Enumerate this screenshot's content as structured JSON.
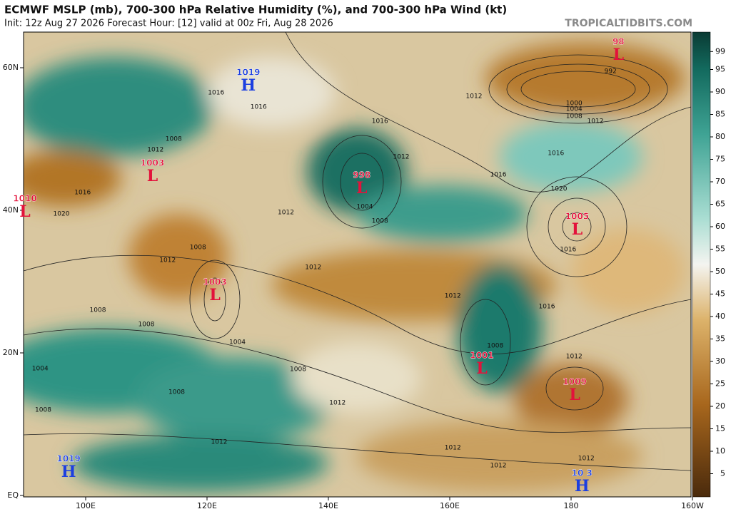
{
  "map": {
    "title": "ECMWF MSLP (mb), 700-300 hPa Relative Humidity (%), and 700-300 hPa Wind (kt)",
    "subtitle": "Init: 12z Aug 27 2026   Forecast Hour: [12]   valid at 00z Fri, Aug 28 2026",
    "brand": "TROPICALTIDBITS.COM",
    "lon_ticks": [
      {
        "value": 100,
        "label": "100E"
      },
      {
        "value": 120,
        "label": "120E"
      },
      {
        "value": 140,
        "label": "140E"
      },
      {
        "value": 160,
        "label": "160E"
      },
      {
        "value": 180,
        "label": "180"
      },
      {
        "value": 200,
        "label": "160W"
      }
    ],
    "lat_ticks": [
      {
        "value": 60,
        "label": "60N"
      },
      {
        "value": 40,
        "label": "40N"
      },
      {
        "value": 20,
        "label": "20N"
      },
      {
        "value": 0,
        "label": "EQ"
      }
    ],
    "colorbar_ticks": [
      5,
      10,
      15,
      20,
      25,
      30,
      35,
      40,
      45,
      50,
      55,
      60,
      65,
      70,
      75,
      80,
      85,
      90,
      95,
      99
    ],
    "systems": [
      {
        "type": "H",
        "value": "1019",
        "lon": 126.8,
        "lat": 57.7
      },
      {
        "type": "L",
        "value": "98",
        "lon": 187.8,
        "lat": 62
      },
      {
        "type": "L",
        "value": "1003",
        "lon": 111,
        "lat": 45
      },
      {
        "type": "L",
        "value": "1010",
        "lon": 90,
        "lat": 40
      },
      {
        "type": "L",
        "value": "998",
        "lon": 145.5,
        "lat": 43.3
      },
      {
        "type": "L",
        "value": "1005",
        "lon": 181,
        "lat": 37.5
      },
      {
        "type": "L",
        "value": "1003",
        "lon": 121.3,
        "lat": 28.3
      },
      {
        "type": "L",
        "value": "1001",
        "lon": 165.3,
        "lat": 18
      },
      {
        "type": "L",
        "value": "1009",
        "lon": 180.6,
        "lat": 14.3
      },
      {
        "type": "H",
        "value": "1019",
        "lon": 97.2,
        "lat": 3.5
      },
      {
        "type": "H",
        "value": "10 3",
        "lon": 181.8,
        "lat": 1.5
      }
    ],
    "isobar_labels": [
      {
        "text": "1016",
        "lon": 121.5,
        "lat": 56.5
      },
      {
        "text": "1016",
        "lon": 128.5,
        "lat": 54.5
      },
      {
        "text": "1012",
        "lon": 111.5,
        "lat": 48.5
      },
      {
        "text": "1008",
        "lon": 114.5,
        "lat": 50
      },
      {
        "text": "1016",
        "lon": 99.5,
        "lat": 42.5
      },
      {
        "text": "1020",
        "lon": 96,
        "lat": 39.5
      },
      {
        "text": "1012",
        "lon": 133,
        "lat": 39.7
      },
      {
        "text": "1004",
        "lon": 146,
        "lat": 40.5
      },
      {
        "text": "1008",
        "lon": 148.5,
        "lat": 38.5
      },
      {
        "text": "1012",
        "lon": 152,
        "lat": 47.5
      },
      {
        "text": "1016",
        "lon": 148.5,
        "lat": 52.5
      },
      {
        "text": "1012",
        "lon": 164,
        "lat": 56
      },
      {
        "text": "992",
        "lon": 186.5,
        "lat": 59.5
      },
      {
        "text": "1000",
        "lon": 180.5,
        "lat": 55
      },
      {
        "text": "1004",
        "lon": 180.5,
        "lat": 54.2
      },
      {
        "text": "1008",
        "lon": 180.5,
        "lat": 53.2
      },
      {
        "text": "1012",
        "lon": 184,
        "lat": 52.5
      },
      {
        "text": "1016",
        "lon": 177.5,
        "lat": 48
      },
      {
        "text": "1016",
        "lon": 168,
        "lat": 45
      },
      {
        "text": "1020",
        "lon": 178,
        "lat": 43
      },
      {
        "text": "1016",
        "lon": 179.5,
        "lat": 34.5
      },
      {
        "text": "1012",
        "lon": 137.5,
        "lat": 32
      },
      {
        "text": "1012",
        "lon": 160.5,
        "lat": 28
      },
      {
        "text": "1016",
        "lon": 176,
        "lat": 26.5
      },
      {
        "text": "1008",
        "lon": 167.5,
        "lat": 21
      },
      {
        "text": "1012",
        "lon": 180.5,
        "lat": 19.5
      },
      {
        "text": "1008",
        "lon": 118.5,
        "lat": 34.8
      },
      {
        "text": "1012",
        "lon": 113.5,
        "lat": 33
      },
      {
        "text": "1008",
        "lon": 102,
        "lat": 26
      },
      {
        "text": "1008",
        "lon": 110,
        "lat": 24
      },
      {
        "text": "1004",
        "lon": 125,
        "lat": 21.5
      },
      {
        "text": "1008",
        "lon": 135,
        "lat": 17.7
      },
      {
        "text": "1008",
        "lon": 115,
        "lat": 14.5
      },
      {
        "text": "1012",
        "lon": 141.5,
        "lat": 13
      },
      {
        "text": "1012",
        "lon": 122,
        "lat": 7.5
      },
      {
        "text": "1012",
        "lon": 160.5,
        "lat": 6.7
      },
      {
        "text": "1012",
        "lon": 168,
        "lat": 4.2
      },
      {
        "text": "1012",
        "lon": 182.5,
        "lat": 5.2
      },
      {
        "text": "1004",
        "lon": 92.5,
        "lat": 17.8
      },
      {
        "text": "1008",
        "lon": 93,
        "lat": 12
      }
    ]
  }
}
